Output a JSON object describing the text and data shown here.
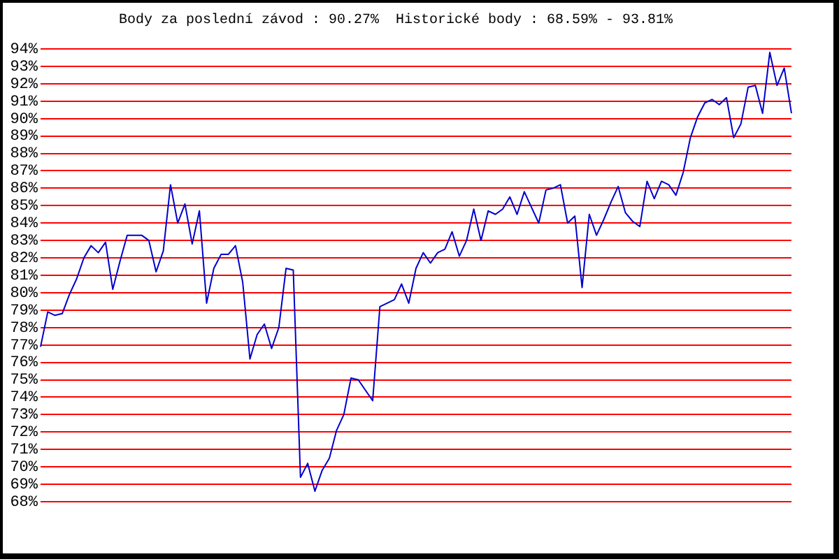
{
  "chart_data": {
    "type": "line",
    "title": "Body za poslední závod : 90.27%  Historické body : 68.59% - 93.81%",
    "categories": [
      null,
      null,
      null,
      null,
      null,
      null,
      null,
      null,
      null,
      null,
      null,
      null,
      null,
      null,
      null,
      null,
      null,
      null,
      null,
      null,
      null,
      null,
      null,
      null,
      null,
      null,
      null,
      null,
      null,
      null,
      null,
      null,
      null,
      null,
      null,
      null,
      null,
      null,
      null,
      null,
      null,
      null,
      null,
      null,
      null,
      null,
      null,
      null,
      null,
      null,
      null,
      null,
      null,
      null,
      null,
      null,
      null,
      null,
      null,
      null,
      null,
      null,
      null,
      null,
      null,
      null,
      null,
      null,
      null,
      null,
      null,
      null,
      null,
      null,
      null,
      null,
      null,
      null,
      null,
      null,
      null,
      null,
      null,
      null,
      null,
      null,
      null,
      null,
      null,
      null,
      null,
      null,
      null,
      null,
      null,
      null,
      null,
      null,
      null,
      null,
      null,
      null,
      null,
      null,
      null
    ],
    "series": [
      {
        "color": "#0000cc",
        "values": [
          76.9,
          78.9,
          78.7,
          78.8,
          79.9,
          80.8,
          82.0,
          82.7,
          82.3,
          82.9,
          80.2,
          81.8,
          83.3,
          83.3,
          83.3,
          83.0,
          81.2,
          82.4,
          86.2,
          84.0,
          85.1,
          82.8,
          84.7,
          79.4,
          81.4,
          82.2,
          82.2,
          82.7,
          80.6,
          76.2,
          77.6,
          78.2,
          76.8,
          78.0,
          81.4,
          81.3,
          69.4,
          70.2,
          68.6,
          69.8,
          70.5,
          72.1,
          73.0,
          75.1,
          75.0,
          74.4,
          73.8,
          79.2,
          79.4,
          79.6,
          80.5,
          79.4,
          81.4,
          82.3,
          81.7,
          82.3,
          82.5,
          83.5,
          82.1,
          83.0,
          84.8,
          83.0,
          84.7,
          84.5,
          84.8,
          85.5,
          84.5,
          85.8,
          84.9,
          84.0,
          85.9,
          86.0,
          86.2,
          84.0,
          84.4,
          80.3,
          84.5,
          83.3,
          84.2,
          85.2,
          86.1,
          84.6,
          84.1,
          83.8,
          86.4,
          85.4,
          86.4,
          86.2,
          85.6,
          86.9,
          88.9,
          90.1,
          90.9,
          91.1,
          90.8,
          91.2,
          88.9,
          89.7,
          91.8,
          91.9,
          90.3,
          93.8,
          91.9,
          92.9,
          90.3
        ]
      }
    ],
    "ylim": [
      68,
      94
    ],
    "yticks": [
      {
        "value": 68,
        "label": "68%"
      },
      {
        "value": 69,
        "label": "69%"
      },
      {
        "value": 70,
        "label": "70%"
      },
      {
        "value": 71,
        "label": "71%"
      },
      {
        "value": 72,
        "label": "72%"
      },
      {
        "value": 73,
        "label": "73%"
      },
      {
        "value": 74,
        "label": "74%"
      },
      {
        "value": 75,
        "label": "75%"
      },
      {
        "value": 76,
        "label": "76%"
      },
      {
        "value": 77,
        "label": "77%"
      },
      {
        "value": 78,
        "label": "78%"
      },
      {
        "value": 79,
        "label": "79%"
      },
      {
        "value": 80,
        "label": "80%"
      },
      {
        "value": 81,
        "label": "81%"
      },
      {
        "value": 82,
        "label": "82%"
      },
      {
        "value": 83,
        "label": "83%"
      },
      {
        "value": 84,
        "label": "84%"
      },
      {
        "value": 85,
        "label": "85%"
      },
      {
        "value": 86,
        "label": "86%"
      },
      {
        "value": 87,
        "label": "87%"
      },
      {
        "value": 88,
        "label": "88%"
      },
      {
        "value": 89,
        "label": "89%"
      },
      {
        "value": 90,
        "label": "90%"
      },
      {
        "value": 91,
        "label": "91%"
      },
      {
        "value": 92,
        "label": "92%"
      },
      {
        "value": 93,
        "label": "93%"
      },
      {
        "value": 94,
        "label": "94%"
      }
    ],
    "grid": "y",
    "marker": "none",
    "tick_labels": "y"
  }
}
